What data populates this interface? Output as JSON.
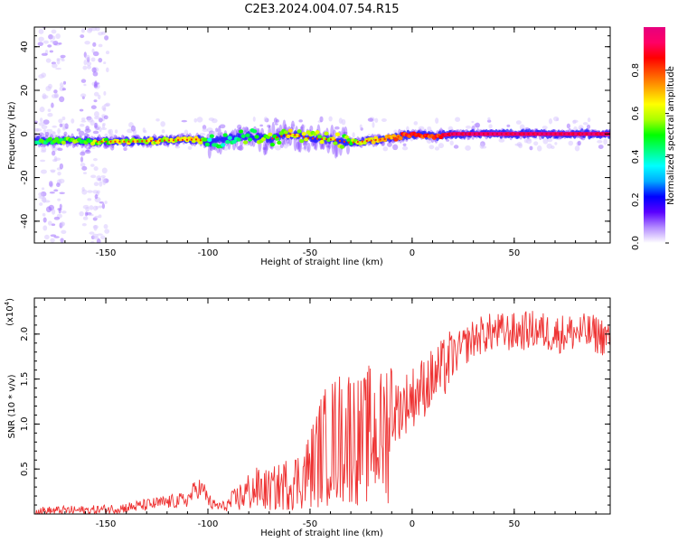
{
  "title": "C2E3.2024.004.07.54.R15",
  "chart_data": [
    {
      "type": "heatmap",
      "xlabel": "Height of straight line (km)",
      "ylabel": "Frequency (Hz)",
      "xlim": [
        -185,
        97
      ],
      "ylim": [
        -50,
        49
      ],
      "x_ticks": [
        -150,
        -100,
        -50,
        0,
        50
      ],
      "y_ticks": [
        -40,
        -20,
        0,
        20,
        40
      ],
      "colorbar": {
        "label": "Normalized spectral amplitude",
        "range": [
          0.0,
          1.0
        ],
        "ticks": [
          0.0,
          0.2,
          0.4,
          0.6,
          0.8
        ],
        "colors": [
          "#ffffff",
          "#b48cff",
          "#5a00ff",
          "#0000ff",
          "#00aaff",
          "#00ffff",
          "#00ff80",
          "#00ff00",
          "#aaff00",
          "#ffff00",
          "#ffaa00",
          "#ff5500",
          "#ff0000",
          "#ff0066",
          "#e6007e"
        ]
      },
      "ridge": [
        {
          "x": -185,
          "y": -3.0,
          "v": 0.45
        },
        {
          "x": -170,
          "y": -3.0,
          "v": 0.5
        },
        {
          "x": -155,
          "y": -3.5,
          "v": 0.55
        },
        {
          "x": -140,
          "y": -3.5,
          "v": 0.6
        },
        {
          "x": -120,
          "y": -3.0,
          "v": 0.6
        },
        {
          "x": -105,
          "y": -2.5,
          "v": 0.65
        },
        {
          "x": -100,
          "y": -4.0,
          "v": 0.4
        },
        {
          "x": -90,
          "y": -2.0,
          "v": 0.45
        },
        {
          "x": -80,
          "y": -1.0,
          "v": 0.5
        },
        {
          "x": -70,
          "y": -2.5,
          "v": 0.55
        },
        {
          "x": -60,
          "y": 0.0,
          "v": 0.6
        },
        {
          "x": -50,
          "y": -2.0,
          "v": 0.6
        },
        {
          "x": -40,
          "y": -2.5,
          "v": 0.6
        },
        {
          "x": -30,
          "y": -4.0,
          "v": 0.55
        },
        {
          "x": -20,
          "y": -3.0,
          "v": 0.65
        },
        {
          "x": -10,
          "y": -2.0,
          "v": 0.75
        },
        {
          "x": 0,
          "y": 0.0,
          "v": 0.85
        },
        {
          "x": 10,
          "y": -1.0,
          "v": 0.8
        },
        {
          "x": 20,
          "y": 0.0,
          "v": 0.95
        },
        {
          "x": 40,
          "y": 0.0,
          "v": 0.97
        },
        {
          "x": 60,
          "y": 0.0,
          "v": 0.97
        },
        {
          "x": 80,
          "y": 0.0,
          "v": 0.96
        },
        {
          "x": 97,
          "y": 0.0,
          "v": 0.95
        }
      ]
    },
    {
      "type": "line",
      "xlabel": "Height of straight line (km)",
      "ylabel": "SNR (10 * v/v)",
      "y_multiplier_label": "(x10",
      "y_multiplier_exp": "4",
      "y_multiplier_close": ")",
      "xlim": [
        -185,
        97
      ],
      "ylim": [
        0,
        2.4
      ],
      "x_ticks": [
        -150,
        -100,
        -50,
        0,
        50
      ],
      "y_ticks": [
        0.5,
        1.0,
        1.5,
        2.0
      ],
      "color": "#ee3333",
      "series": [
        {
          "x": [
            -185,
            -170,
            -160,
            -150,
            -140,
            -130,
            -120,
            -110,
            -105,
            -102,
            -98,
            -92,
            -85,
            -80,
            -75,
            -70,
            -65,
            -60,
            -55,
            -50,
            -45,
            -40,
            -35,
            -30,
            -25,
            -20,
            -15,
            -10,
            -5,
            0,
            5,
            10,
            15,
            20,
            25,
            30,
            35,
            40,
            50,
            60,
            70,
            80,
            90,
            97
          ],
          "y": [
            0.03,
            0.04,
            0.04,
            0.05,
            0.07,
            0.1,
            0.13,
            0.16,
            0.3,
            0.25,
            0.1,
            0.08,
            0.18,
            0.25,
            0.28,
            0.26,
            0.3,
            0.35,
            0.38,
            0.5,
            0.7,
            0.8,
            0.85,
            0.9,
            0.8,
            0.9,
            0.85,
            1.1,
            1.2,
            1.3,
            1.4,
            1.5,
            1.6,
            1.75,
            1.85,
            1.95,
            2.0,
            2.02,
            2.02,
            2.05,
            2.0,
            2.02,
            2.0,
            1.95
          ]
        }
      ]
    }
  ]
}
